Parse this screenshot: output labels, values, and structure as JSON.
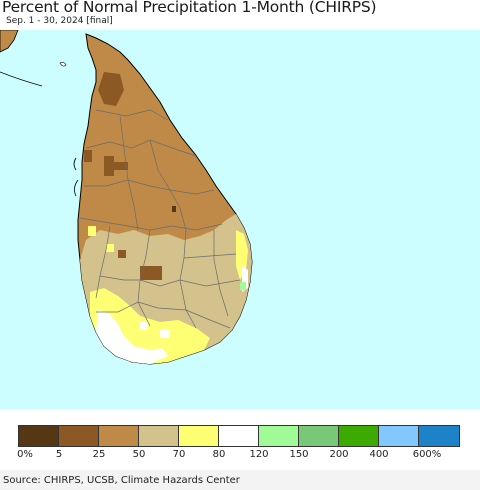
{
  "header": {
    "title": "Percent of Normal Precipitation 1-Month (CHIRPS)",
    "subtitle": "Sep. 1 - 30, 2024 [final]"
  },
  "map": {
    "region": "Sri Lanka",
    "ocean_color": "#ccfeff",
    "dominant_class_color": "#bf8a47"
  },
  "legend": {
    "swatches": [
      {
        "color": "#553813"
      },
      {
        "color": "#8c5823"
      },
      {
        "color": "#bf8a47"
      },
      {
        "color": "#d4c28c"
      },
      {
        "color": "#ffff73"
      },
      {
        "color": "#ffffff"
      },
      {
        "color": "#a0fa96"
      },
      {
        "color": "#78c878"
      },
      {
        "color": "#3caa00"
      },
      {
        "color": "#82c8ff"
      },
      {
        "color": "#1e82c8"
      }
    ],
    "labels": [
      "0%",
      "5",
      "25",
      "50",
      "70",
      "80",
      "120",
      "150",
      "200",
      "400",
      "600%"
    ]
  },
  "footer": {
    "source": "Source: CHIRPS, UCSB, Climate Hazards Center"
  }
}
